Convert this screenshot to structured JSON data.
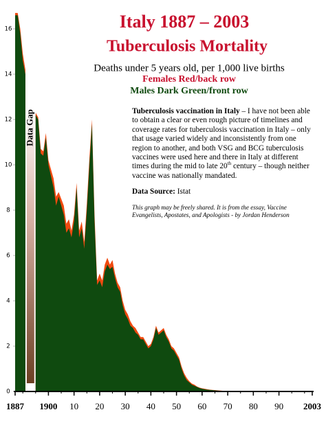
{
  "chart_data": {
    "type": "area",
    "title": "Italy 1887 – 2003",
    "title2": "Tuberculosis Mortality",
    "subtitle": "Deaths under 5 years old, per 1,000 live births",
    "legend_note_1": "Females Red/back row",
    "legend_note_2": "Males Dark Green/front row",
    "gap_label": "Data Gap",
    "annotation": {
      "lead": "Tuberculosis vaccination in Italy",
      "text": " – I have not been able to obtain a clear or even rough picture of timelines and coverage rates for tuberculosis vaccination in Italy – only that usage varied widely and inconsistently from one region to another, and both VSG and BCG tuberculosis vaccines were used here and there in Italy at different times during the mid to late 20",
      "sup": "th",
      "tail": " century – though neither vaccine was nationally mandated."
    },
    "source_label": "Data Source:",
    "source": "Istat",
    "credit": "This graph may be freely shared. It is from the essay, Vaccine Evangelists, Apostates, and Apologists - by Jordan Henderson",
    "x": [
      1887,
      1888,
      1889,
      1890,
      1891,
      1892,
      1893,
      1894,
      1895,
      1896,
      1897,
      1898,
      1899,
      1900,
      1901,
      1902,
      1903,
      1904,
      1905,
      1906,
      1907,
      1908,
      1909,
      1910,
      1911,
      1912,
      1913,
      1914,
      1915,
      1916,
      1917,
      1918,
      1919,
      1920,
      1921,
      1922,
      1923,
      1924,
      1925,
      1926,
      1927,
      1928,
      1929,
      1930,
      1931,
      1932,
      1933,
      1934,
      1935,
      1936,
      1937,
      1938,
      1939,
      1940,
      1941,
      1942,
      1943,
      1944,
      1945,
      1946,
      1947,
      1948,
      1949,
      1950,
      1951,
      1952,
      1953,
      1954,
      1955,
      1956,
      1957,
      1958,
      1959,
      1960,
      1961,
      1962,
      1963,
      1964,
      1965,
      1966,
      1967,
      1968,
      1969,
      1970,
      1971,
      1972,
      1973,
      1974,
      1975,
      1976,
      1977,
      1978,
      1979,
      1980,
      1981,
      1982,
      1983,
      1984,
      1985,
      1986,
      1987,
      1988,
      1989,
      1990,
      1991,
      1992,
      1993,
      1994,
      1995,
      1996,
      1997,
      1998,
      1999,
      2000,
      2001,
      2002,
      2003
    ],
    "series": [
      {
        "name": "Females",
        "color": "#f04a10",
        "values": [
          16.7,
          16.7,
          16.0,
          14.9,
          14.2,
          null,
          null,
          null,
          12.3,
          12.1,
          10.7,
          10.6,
          11.4,
          10.2,
          9.8,
          9.4,
          8.6,
          8.8,
          8.5,
          8.2,
          7.4,
          7.6,
          7.1,
          7.8,
          9.2,
          7.1,
          7.5,
          6.6,
          8.3,
          10.3,
          12.0,
          7.8,
          4.9,
          5.2,
          4.9,
          5.6,
          5.9,
          5.6,
          5.8,
          5.2,
          4.8,
          4.6,
          4.0,
          3.6,
          3.4,
          3.1,
          2.9,
          2.8,
          2.6,
          2.4,
          2.4,
          2.2,
          2.0,
          2.1,
          2.4,
          2.9,
          2.6,
          2.7,
          2.8,
          2.5,
          2.3,
          2.0,
          1.9,
          1.7,
          1.5,
          1.1,
          0.8,
          0.6,
          0.45,
          0.35,
          0.3,
          0.22,
          0.17,
          0.14,
          0.12,
          0.1,
          0.08,
          0.07,
          0.06,
          0.05,
          0.04,
          0.03,
          0.03,
          0.02,
          0.02,
          0.02,
          0.01,
          0.01,
          0.01,
          0.01,
          0.01,
          0,
          0,
          0,
          0,
          0,
          0,
          0,
          0,
          0,
          0,
          0,
          0,
          0,
          0,
          0,
          0,
          0,
          0,
          0,
          0,
          0,
          0,
          0,
          0,
          0,
          0
        ]
      },
      {
        "name": "Males",
        "color": "#0f4a0f",
        "values": [
          16.6,
          16.6,
          15.8,
          14.6,
          14.0,
          null,
          null,
          null,
          12.2,
          12.0,
          10.5,
          10.4,
          11.2,
          10.0,
          9.5,
          9.0,
          8.2,
          8.6,
          8.2,
          7.8,
          7.0,
          7.2,
          6.8,
          7.5,
          9.0,
          6.8,
          7.2,
          6.3,
          8.0,
          10.0,
          11.8,
          7.5,
          4.7,
          4.9,
          4.6,
          5.3,
          5.6,
          5.4,
          5.5,
          5.0,
          4.6,
          4.4,
          3.8,
          3.4,
          3.2,
          2.9,
          2.8,
          2.6,
          2.5,
          2.3,
          2.3,
          2.1,
          1.9,
          2.0,
          2.3,
          2.8,
          2.5,
          2.6,
          2.7,
          2.4,
          2.2,
          1.9,
          1.8,
          1.6,
          1.4,
          1.0,
          0.7,
          0.5,
          0.4,
          0.3,
          0.25,
          0.2,
          0.15,
          0.12,
          0.1,
          0.08,
          0.07,
          0.06,
          0.05,
          0.04,
          0.03,
          0.03,
          0.02,
          0.02,
          0.02,
          0.01,
          0.01,
          0.01,
          0.01,
          0.01,
          0.01,
          0,
          0,
          0,
          0,
          0,
          0,
          0,
          0,
          0,
          0,
          0,
          0,
          0,
          0,
          0,
          0,
          0,
          0,
          0,
          0,
          0,
          0,
          0,
          0,
          0,
          0
        ]
      }
    ],
    "xlim": [
      1887,
      2003
    ],
    "ylim": [
      0,
      17
    ],
    "xticks": [
      {
        "value": 1887,
        "label": "1887"
      },
      {
        "value": 1900,
        "label": "1900"
      },
      {
        "value": 1910,
        "label": "10"
      },
      {
        "value": 1920,
        "label": "20"
      },
      {
        "value": 1930,
        "label": "30"
      },
      {
        "value": 1940,
        "label": "40"
      },
      {
        "value": 1950,
        "label": "50"
      },
      {
        "value": 1960,
        "label": "60"
      },
      {
        "value": 1970,
        "label": "70"
      },
      {
        "value": 1980,
        "label": "80"
      },
      {
        "value": 1990,
        "label": "90"
      },
      {
        "value": 2003,
        "label": "2003"
      }
    ],
    "yticks": [
      0,
      2,
      4,
      6,
      8,
      10,
      12,
      14,
      16
    ]
  }
}
